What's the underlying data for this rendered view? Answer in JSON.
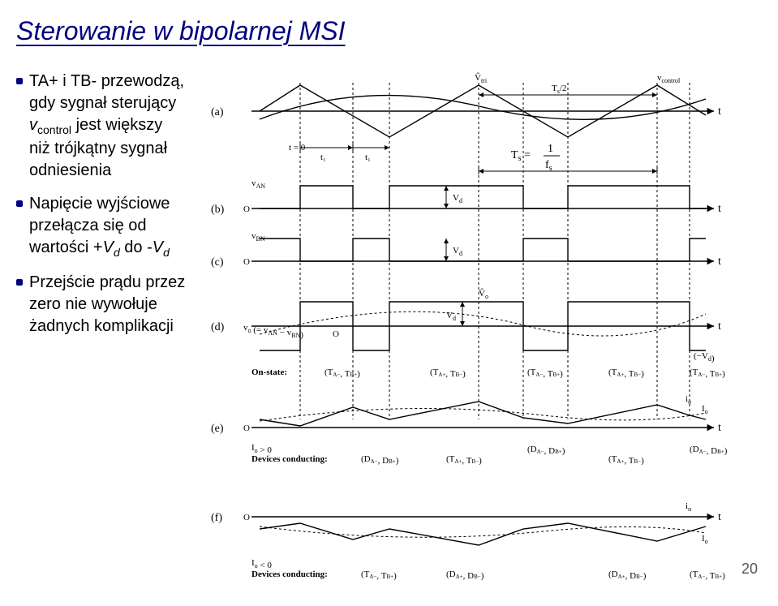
{
  "title": "Sterowanie w bipolarnej MSI",
  "bullets": [
    {
      "html": "TA+ i TB- przewodzą, gdy sygnał sterujący <i>v</i><span class='sub'>control</span> jest większy niż trójkątny sygnał odniesienia"
    },
    {
      "html": "Napięcie wyjściowe przełącza się od wartości +<i>V<span class='sub'>d</span></i> do -<i>V<span class='sub'>d</span></i>"
    },
    {
      "html": "Przejście prądu przez zero nie wywołuje żadnych komplikacji"
    }
  ],
  "pageNumber": "20",
  "diagram": {
    "rowLabels": [
      "(a)",
      "(b)",
      "(c)",
      "(d)",
      "(e)",
      "(f)"
    ],
    "topLabels": {
      "vtri": "v̂_tri",
      "vcontrol": "v_control",
      "t0": "t = 0",
      "t1": "t₁",
      "ts2": "T_s/2",
      "ts": "T_s =",
      "fs": "1/f_s"
    },
    "signalLabels": {
      "van": "v_AN",
      "vbn": "v_BN",
      "vo": "v_o (= v_AN − v_BN)",
      "vd": "V_d",
      "voh": "V_o",
      "nvd": "(−V_d)"
    },
    "onStateLabel": "On-state:",
    "devicesLabel": "Devices conducting:",
    "currentLabels": {
      "io": "i_o",
      "iop": "I_o > 0",
      "ion": "I_o < 0"
    },
    "pairs": {
      "tam_tbp": "(T_{A-}, T_{B+})",
      "tap_tbm": "(T_{A+}, T_{B-})",
      "dam_dbp": "(D_{A-}, D_{B+})",
      "dap_dbm": "(D_{A+}, D_{B-})"
    },
    "axisLabel": "t",
    "zeroLabel": "O"
  }
}
